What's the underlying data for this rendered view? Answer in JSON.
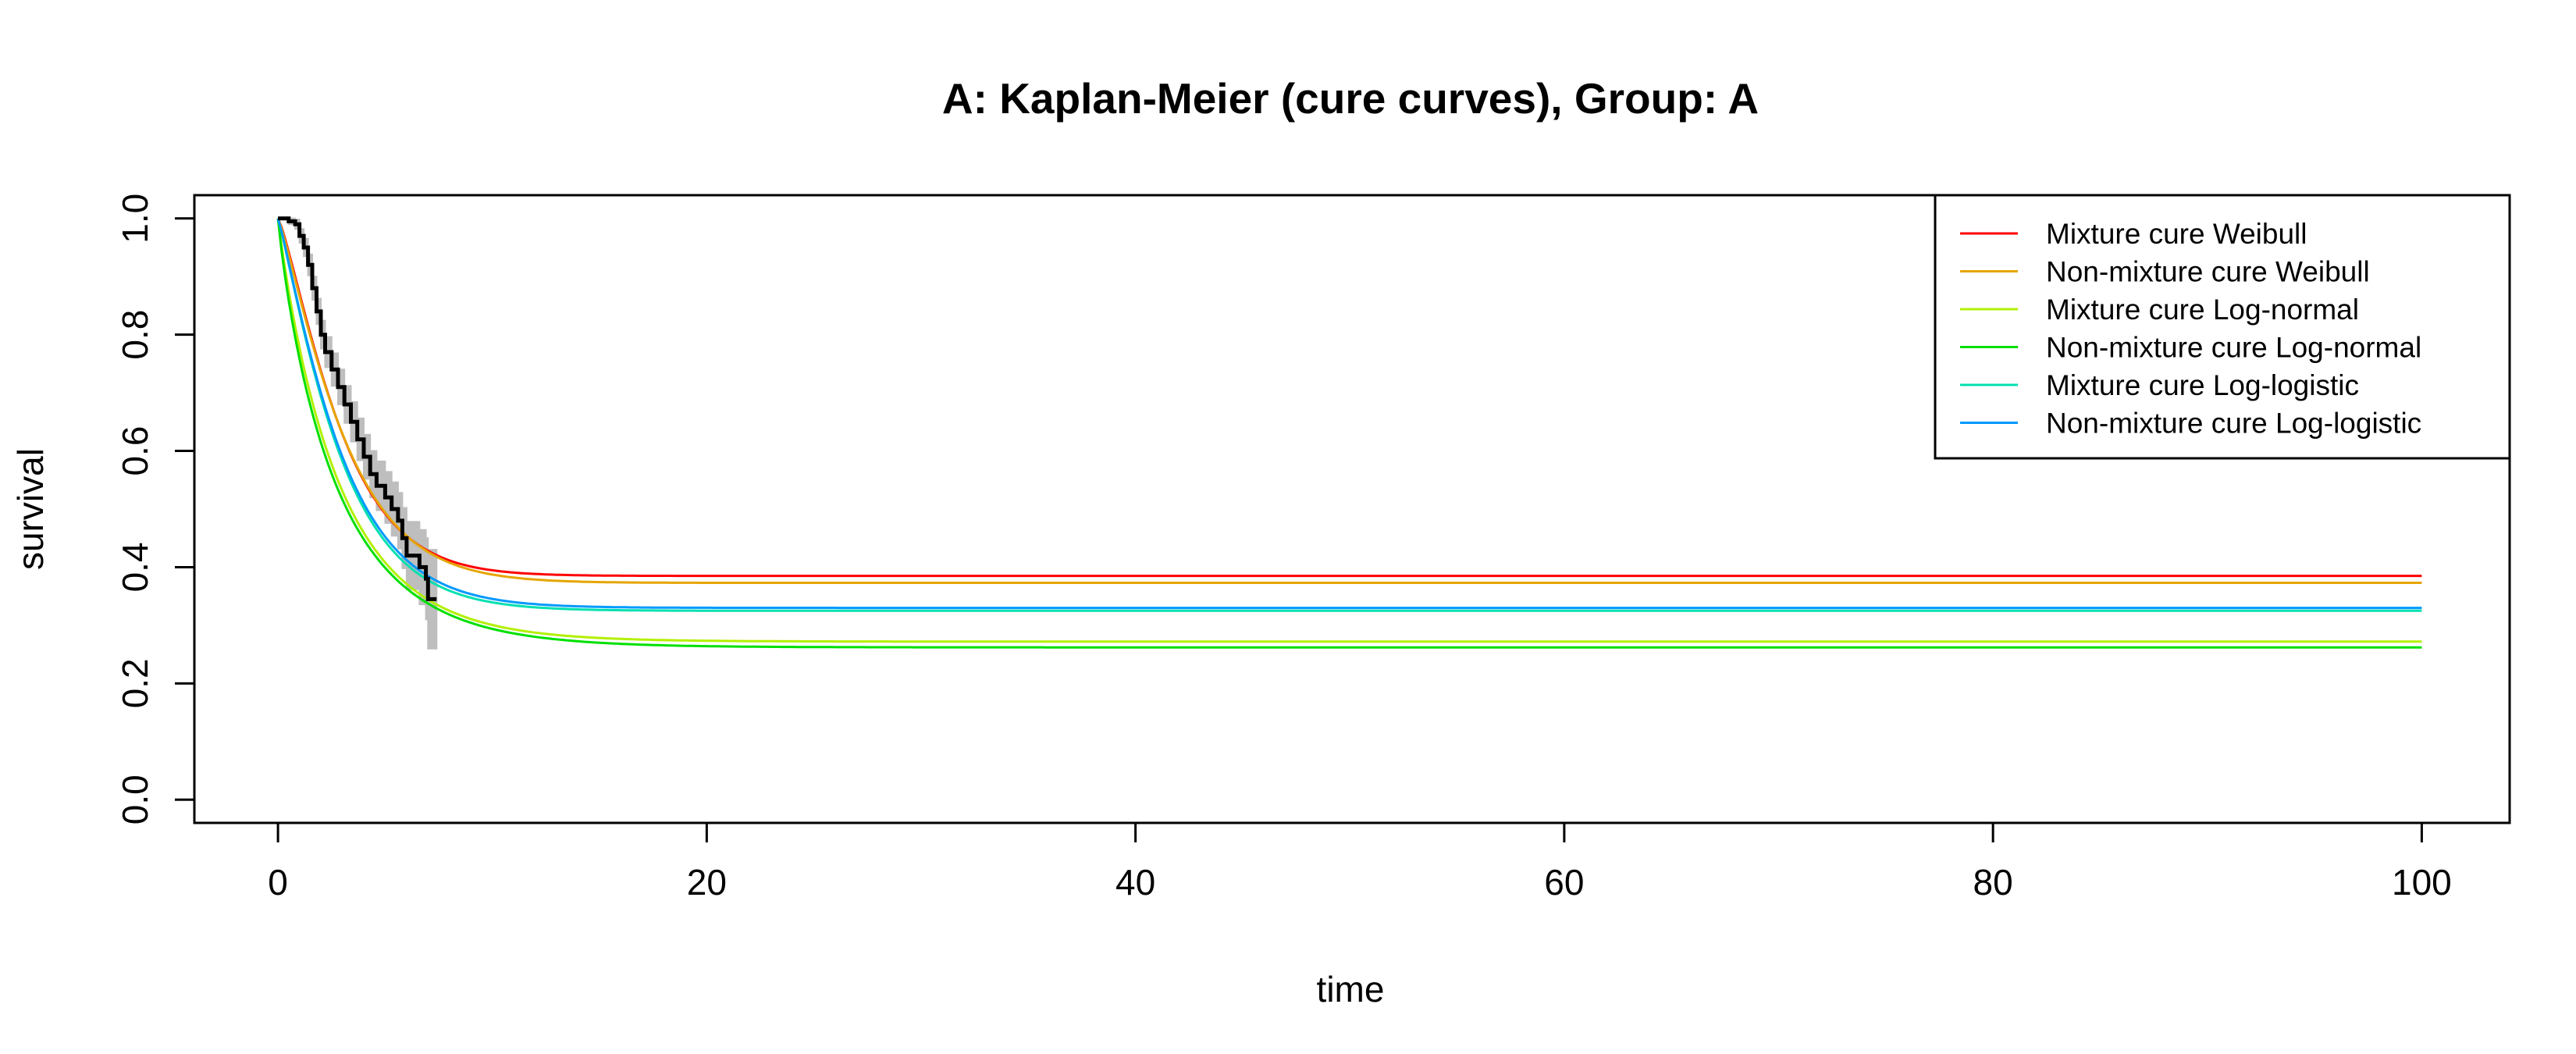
{
  "chart_data": {
    "type": "line",
    "title": "A: Kaplan-Meier (cure curves), Group: A",
    "xlabel": "time",
    "ylabel": "survival",
    "xlim": [
      -3.9,
      104.1
    ],
    "ylim": [
      -0.04,
      1.04
    ],
    "xticks": [
      0,
      20,
      40,
      60,
      80,
      100
    ],
    "yticks": [
      0.0,
      0.2,
      0.4,
      0.6,
      0.8,
      1.0
    ],
    "xtick_labels": [
      "0",
      "20",
      "40",
      "60",
      "80",
      "100"
    ],
    "ytick_labels": [
      "0.0",
      "0.2",
      "0.4",
      "0.6",
      "0.8",
      "1.0"
    ],
    "grid": false,
    "legend_position": "top-right",
    "kaplan_meier": {
      "color": "#000000",
      "ci_color": "#bebebe",
      "steps": [
        [
          0,
          1.0
        ],
        [
          0.3,
          1.0
        ],
        [
          0.5,
          0.995
        ],
        [
          0.8,
          0.99
        ],
        [
          1.0,
          0.97
        ],
        [
          1.2,
          0.95
        ],
        [
          1.4,
          0.92
        ],
        [
          1.6,
          0.88
        ],
        [
          1.8,
          0.84
        ],
        [
          2.0,
          0.8
        ],
        [
          2.2,
          0.77
        ],
        [
          2.5,
          0.74
        ],
        [
          2.8,
          0.71
        ],
        [
          3.1,
          0.68
        ],
        [
          3.4,
          0.65
        ],
        [
          3.7,
          0.62
        ],
        [
          4.0,
          0.59
        ],
        [
          4.3,
          0.56
        ],
        [
          4.6,
          0.54
        ],
        [
          5.0,
          0.52
        ],
        [
          5.3,
          0.5
        ],
        [
          5.6,
          0.48
        ],
        [
          5.8,
          0.45
        ],
        [
          6.0,
          0.42
        ],
        [
          6.6,
          0.4
        ],
        [
          6.9,
          0.38
        ],
        [
          7.0,
          0.345
        ],
        [
          7.4,
          0.345
        ]
      ],
      "ci_halfwidth": [
        0,
        0,
        0.005,
        0.008,
        0.012,
        0.015,
        0.018,
        0.02,
        0.022,
        0.024,
        0.026,
        0.028,
        0.03,
        0.032,
        0.034,
        0.036,
        0.038,
        0.04,
        0.042,
        0.044,
        0.046,
        0.048,
        0.052,
        0.058,
        0.064,
        0.07,
        0.085,
        0.085
      ]
    },
    "series": [
      {
        "name": "Mixture cure Weibull",
        "color": "#ff0000",
        "cure_fraction": 0.385,
        "scale": 3.2,
        "shape": 1.25
      },
      {
        "name": "Non-mixture cure Weibull",
        "color": "#e6a500",
        "cure_fraction": 0.373,
        "scale": 3.3,
        "shape": 1.2
      },
      {
        "name": "Mixture cure Log-normal",
        "color": "#b3f000",
        "cure_fraction": 0.272,
        "scale": 2.9,
        "shape": 0.95
      },
      {
        "name": "Non-mixture cure Log-normal",
        "color": "#00e000",
        "cure_fraction": 0.262,
        "scale": 2.8,
        "shape": 0.9
      },
      {
        "name": "Mixture cure Log-logistic",
        "color": "#00e0b0",
        "cure_fraction": 0.325,
        "scale": 3.1,
        "shape": 1.15
      },
      {
        "name": "Non-mixture cure Log-logistic",
        "color": "#0099ff",
        "cure_fraction": 0.33,
        "scale": 3.15,
        "shape": 1.15
      }
    ]
  }
}
